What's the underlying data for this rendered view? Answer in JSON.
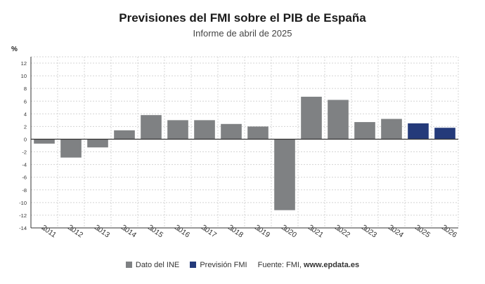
{
  "title": "Previsiones del FMI sobre el PIB de España",
  "subtitle": "Informe de abril de 2025",
  "chart_data": {
    "type": "bar",
    "ylabel": "%",
    "ylim": [
      -14,
      13
    ],
    "yticks": [
      -14,
      -12,
      -10,
      -8,
      -6,
      -4,
      -2,
      0,
      2,
      4,
      6,
      8,
      10,
      12
    ],
    "grid": true,
    "categories": [
      "2011",
      "2012",
      "2013",
      "2014",
      "2015",
      "2016",
      "2017",
      "2018",
      "2019",
      "2020",
      "2021",
      "2022",
      "2023",
      "2024",
      "2025",
      "2026"
    ],
    "values": [
      -0.7,
      -2.9,
      -1.3,
      1.4,
      3.8,
      3.0,
      3.0,
      2.4,
      2.0,
      -11.2,
      6.7,
      6.2,
      2.7,
      3.2,
      2.5,
      1.8
    ],
    "series_index": [
      0,
      0,
      0,
      0,
      0,
      0,
      0,
      0,
      0,
      0,
      0,
      0,
      0,
      0,
      1,
      1
    ],
    "series": [
      {
        "name": "Dato del INE",
        "color": "#7f8183"
      },
      {
        "name": "Previsión FMI",
        "color": "#243a7a"
      }
    ],
    "legend_position": "bottom"
  },
  "source": {
    "label": "Fuente: FMI,",
    "site": "www.epdata.es"
  }
}
